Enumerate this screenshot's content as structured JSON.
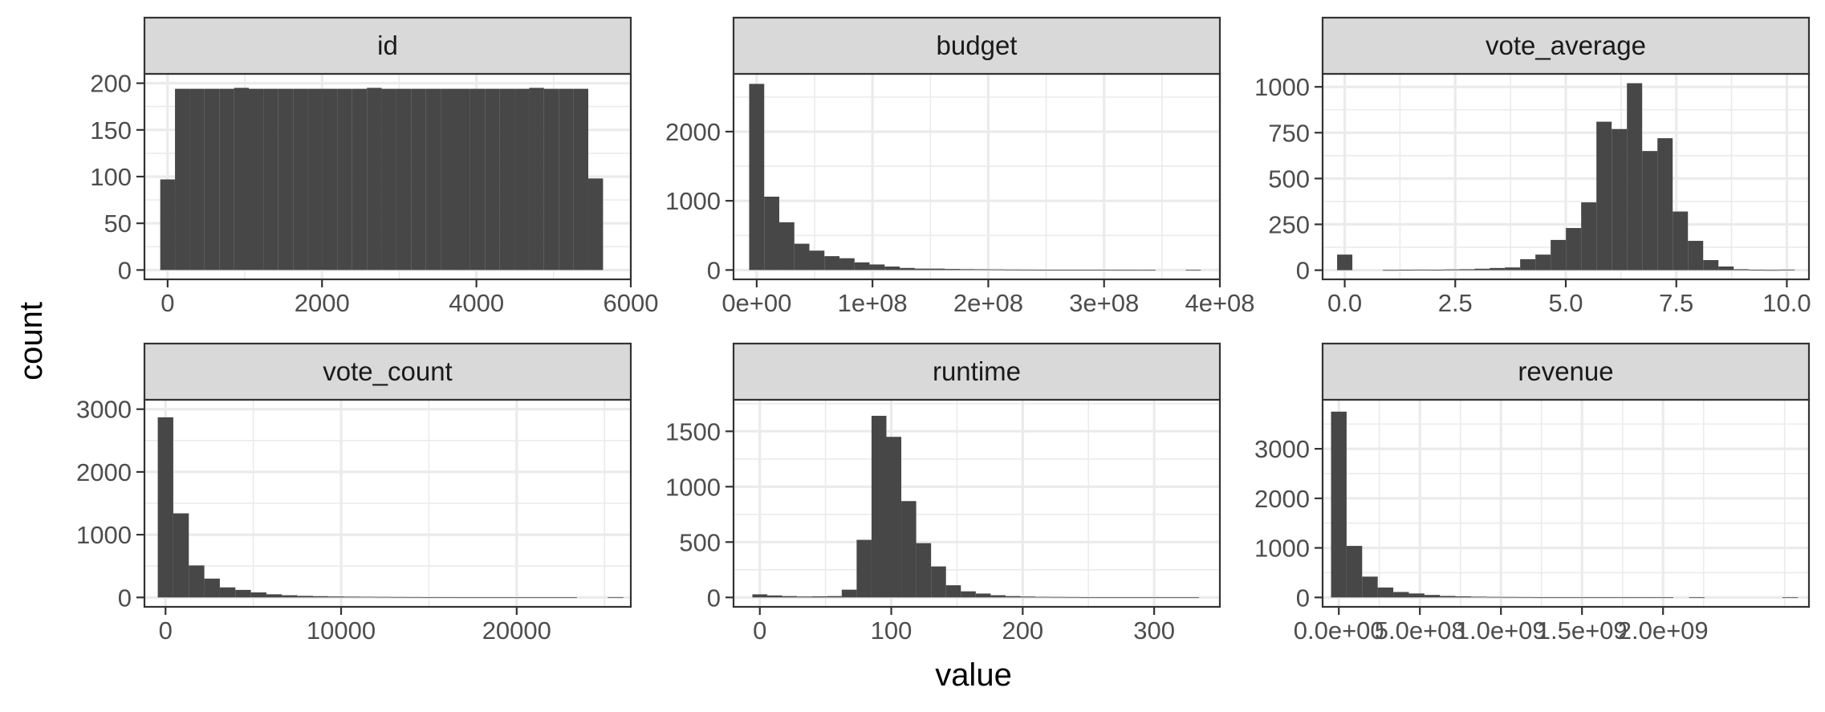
{
  "chart_data": {
    "type": "bar",
    "xlabel": "value",
    "ylabel": "count",
    "grid": true,
    "panels": [
      {
        "title": "id",
        "xlim": [
          -300,
          6000
        ],
        "ylim": [
          0,
          200
        ],
        "x_ticks": [
          0,
          2000,
          4000,
          6000
        ],
        "x_tick_labels": [
          "0",
          "2000",
          "4000",
          "6000"
        ],
        "y_ticks": [
          0,
          50,
          100,
          150,
          200
        ],
        "y_tick_labels": [
          "0",
          "50",
          "100",
          "150",
          "200"
        ],
        "bin_start": -95.6,
        "bin_width": 191.2,
        "counts": [
          97,
          194,
          194,
          194,
          194,
          195,
          194,
          194,
          194,
          194,
          194,
          194,
          194,
          194,
          195,
          194,
          194,
          194,
          194,
          194,
          194,
          194,
          194,
          194,
          194,
          195,
          194,
          194,
          194,
          98
        ]
      },
      {
        "title": "budget",
        "xlim": [
          -20000000,
          400000000
        ],
        "ylim": [
          0,
          2700
        ],
        "x_ticks": [
          0,
          100000000,
          200000000,
          300000000,
          400000000
        ],
        "x_tick_labels": [
          "0e+00",
          "1e+08",
          "2e+08",
          "3e+08",
          "4e+08"
        ],
        "y_ticks": [
          0,
          1000,
          2000
        ],
        "y_tick_labels": [
          "0",
          "1000",
          "2000"
        ],
        "bin_start": -6500000,
        "bin_width": 13000000,
        "counts": [
          2690,
          1060,
          690,
          380,
          280,
          200,
          170,
          110,
          80,
          50,
          30,
          20,
          20,
          15,
          12,
          10,
          8,
          6,
          5,
          4,
          3,
          3,
          2,
          2,
          1,
          1,
          1,
          0,
          0,
          1
        ]
      },
      {
        "title": "vote_average",
        "xlim": [
          -0.5,
          10.5
        ],
        "ylim": [
          0,
          1000
        ],
        "x_ticks": [
          0,
          2.5,
          5,
          7.5,
          10
        ],
        "x_tick_labels": [
          "0.0",
          "2.5",
          "5.0",
          "7.5",
          "10.0"
        ],
        "y_ticks": [
          0,
          250,
          500,
          750,
          1000
        ],
        "y_tick_labels": [
          "0",
          "250",
          "500",
          "750",
          "1000"
        ],
        "bin_start": -0.172,
        "bin_width": 0.345,
        "counts": [
          85,
          0,
          0,
          1,
          2,
          3,
          2,
          4,
          5,
          8,
          12,
          15,
          60,
          85,
          165,
          230,
          370,
          810,
          770,
          1020,
          650,
          720,
          320,
          160,
          55,
          20,
          5,
          2,
          1,
          3
        ]
      },
      {
        "title": "vote_count",
        "xlim": [
          -1200,
          26500
        ],
        "ylim": [
          0,
          3000
        ],
        "x_ticks": [
          0,
          10000,
          20000
        ],
        "x_tick_labels": [
          "0",
          "10000",
          "20000"
        ],
        "y_ticks": [
          0,
          1000,
          2000,
          3000
        ],
        "y_tick_labels": [
          "0",
          "1000",
          "2000",
          "3000"
        ],
        "bin_start": -442,
        "bin_width": 884,
        "counts": [
          2870,
          1340,
          510,
          300,
          160,
          120,
          80,
          50,
          35,
          25,
          20,
          15,
          12,
          10,
          8,
          6,
          5,
          4,
          4,
          3,
          3,
          2,
          2,
          1,
          1,
          1,
          1,
          0,
          0,
          4
        ]
      },
      {
        "title": "runtime",
        "xlim": [
          -20,
          350
        ],
        "ylim": [
          0,
          1700
        ],
        "x_ticks": [
          0,
          100,
          200,
          300
        ],
        "x_tick_labels": [
          "0",
          "100",
          "200",
          "300"
        ],
        "y_ticks": [
          0,
          500,
          1000,
          1500
        ],
        "y_tick_labels": [
          "0",
          "500",
          "1000",
          "1500"
        ],
        "bin_start": -5.66,
        "bin_width": 11.33,
        "counts": [
          28,
          18,
          12,
          8,
          10,
          12,
          70,
          520,
          1640,
          1450,
          870,
          490,
          280,
          110,
          55,
          35,
          20,
          12,
          8,
          5,
          4,
          3,
          2,
          2,
          1,
          1,
          1,
          1,
          1,
          1
        ]
      },
      {
        "title": "revenue",
        "xlim": [
          -100000000,
          2900000000
        ],
        "ylim": [
          0,
          3800
        ],
        "x_ticks": [
          0,
          500000000,
          1000000000,
          1500000000,
          2000000000
        ],
        "x_tick_labels": [
          "0.0e+00",
          "5.0e+08",
          "1.0e+09",
          "1.5e+09",
          "2.0e+09"
        ],
        "y_ticks": [
          0,
          1000,
          2000,
          3000
        ],
        "y_tick_labels": [
          "0",
          "1000",
          "2000",
          "3000"
        ],
        "bin_start": -48000000,
        "bin_width": 96000000,
        "counts": [
          3750,
          1040,
          420,
          200,
          110,
          80,
          50,
          30,
          22,
          15,
          10,
          8,
          6,
          4,
          3,
          2,
          2,
          2,
          1,
          1,
          1,
          1,
          0,
          1,
          0,
          0,
          0,
          0,
          0,
          1
        ]
      }
    ]
  }
}
